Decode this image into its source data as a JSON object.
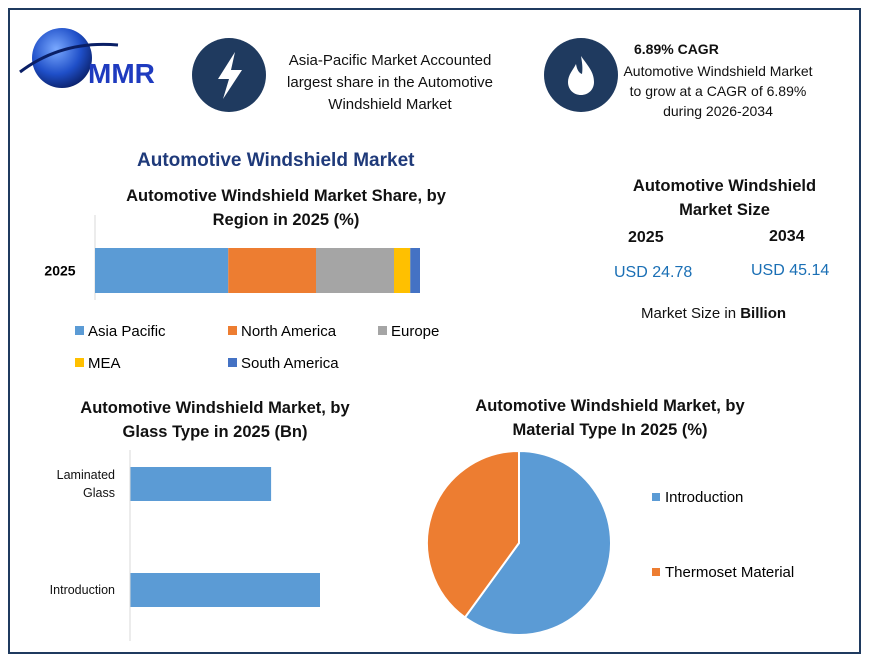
{
  "header": {
    "logo_text": "MMR",
    "highlight_1": "Asia-Pacific Market Accounted largest share in the Automotive Windshield Market",
    "highlight_2_title": "6.89% CAGR",
    "highlight_2_text": "Automotive Windshield Market to grow at a CAGR of 6.89% during 2026-2034"
  },
  "title": "Automotive Windshield Market",
  "market_size": {
    "title": "Automotive Windshield Market Size",
    "columns": [
      {
        "year": "2025",
        "value": "USD 24.78"
      },
      {
        "year": "2034",
        "value": "USD 45.14"
      }
    ],
    "note": "Market Size in",
    "note_unit": "Billion"
  },
  "chart_data": [
    {
      "type": "bar",
      "orientation": "horizontal",
      "stacked": true,
      "title": "Automotive Windshield Market Share, by Region in 2025 (%)",
      "categories": [
        "2025"
      ],
      "series": [
        {
          "name": "Asia Pacific",
          "color": "#5b9bd5",
          "values": [
            41
          ]
        },
        {
          "name": "North America",
          "color": "#ed7d31",
          "values": [
            27
          ]
        },
        {
          "name": "Europe",
          "color": "#a5a5a5",
          "values": [
            24
          ]
        },
        {
          "name": "MEA",
          "color": "#ffc000",
          "values": [
            5
          ]
        },
        {
          "name": "South America",
          "color": "#4472c4",
          "values": [
            3
          ]
        }
      ]
    },
    {
      "type": "bar",
      "orientation": "horizontal",
      "stacked": false,
      "title": "Automotive Windshield Market, by Glass Type in 2025 (Bn)",
      "categories": [
        "Laminated Glass",
        "Introduction"
      ],
      "values": [
        10.56,
        14.22
      ],
      "color": "#5b9bd5"
    },
    {
      "type": "pie",
      "title": "Automotive Windshield Market, by Material Type In 2025 (%)",
      "categories": [
        "Introduction",
        "Thermoset Material"
      ],
      "values": [
        60,
        40
      ],
      "colors": [
        "#5b9bd5",
        "#ed7d31"
      ]
    }
  ]
}
